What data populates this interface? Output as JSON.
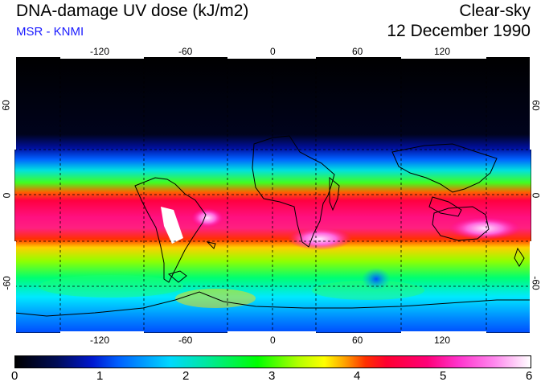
{
  "header": {
    "title": "DNA-damage UV dose (kJ/m2)",
    "subtitle": "MSR - KNMI",
    "condition": "Clear-sky",
    "date": "12 December 1990"
  },
  "map": {
    "lon_ticks": [
      "-120",
      "-60",
      "0",
      "60",
      "120"
    ],
    "lat_ticks_left": [
      "60",
      "0",
      "-60"
    ],
    "lat_ticks_right": [
      "60",
      "0",
      "-60"
    ],
    "lon_range": [
      -180,
      180
    ],
    "lat_range": [
      -90,
      90
    ]
  },
  "colorbar": {
    "ticks": [
      "0",
      "1",
      "2",
      "3",
      "4",
      "5",
      "6"
    ],
    "range": [
      0,
      6
    ],
    "colors": {
      "low": "#000000",
      "mid_blue": "#0018d0",
      "cyan": "#00d8ff",
      "green": "#00ff00",
      "yellow": "#ffff00",
      "red": "#ff0030",
      "magenta": "#ff33cc",
      "high": "#ffffff"
    }
  }
}
